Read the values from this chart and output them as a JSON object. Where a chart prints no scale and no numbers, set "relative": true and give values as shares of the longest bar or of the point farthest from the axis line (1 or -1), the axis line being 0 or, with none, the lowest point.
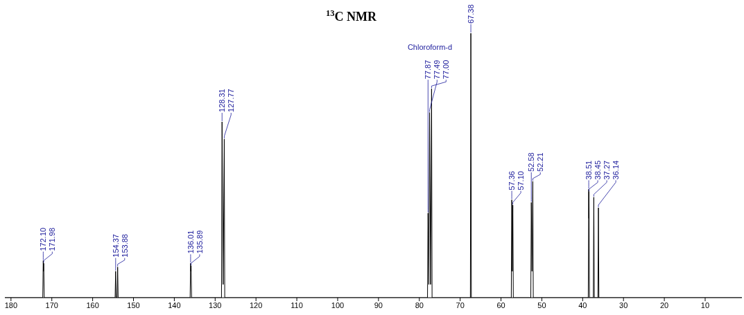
{
  "chart_data": {
    "type": "line",
    "title": "$^{13}$C NMR",
    "relative": true,
    "marker": "none",
    "line_style": "solid",
    "grid": false,
    "legend": false,
    "xlim": [
      181.5,
      1
    ],
    "xticks": [
      180,
      170,
      160,
      150,
      140,
      130,
      120,
      110,
      100,
      90,
      80,
      70,
      60,
      50,
      40,
      30,
      20,
      10
    ],
    "series": [
      {
        "color": "#000000",
        "x": [
          181.5,
          172.22,
          172.1,
          172.04,
          171.98,
          171.86,
          154.5,
          154.37,
          154.25,
          154.0,
          153.88,
          153.76,
          136.13,
          136.01,
          135.95,
          135.89,
          135.77,
          128.45,
          128.31,
          128.04,
          127.77,
          127.65,
          78.0,
          77.87,
          77.68,
          77.49,
          77.25,
          77.0,
          76.88,
          67.5,
          67.38,
          67.26,
          57.48,
          57.36,
          57.23,
          57.1,
          56.98,
          52.7,
          52.58,
          52.4,
          52.21,
          52.09,
          38.63,
          38.51,
          38.48,
          38.45,
          38.33,
          37.39,
          37.27,
          37.15,
          36.26,
          36.14,
          36.02,
          1
        ],
        "values": [
          0,
          0,
          0.14,
          0.1,
          0.13,
          0,
          0,
          0.1,
          0,
          0,
          0.116,
          0,
          0,
          0.13,
          0.1,
          0.12,
          0,
          0,
          0.665,
          0.05,
          0.6,
          0,
          0,
          0.32,
          0.05,
          0.7,
          0.05,
          0.79,
          0,
          0,
          1,
          0,
          0,
          0.37,
          0.1,
          0.35,
          0,
          0,
          0.36,
          0.1,
          0.44,
          0,
          0,
          0.41,
          0.3,
          0.4,
          0,
          0,
          0.38,
          0,
          0,
          0.34,
          0,
          0
        ]
      }
    ],
    "annotations": [
      "Chloroform-d",
      {
        "text": "172.10",
        "x": 172.1,
        "y": 0.14
      },
      {
        "text": "171.98",
        "x": 171.98,
        "y": 0.13
      },
      {
        "text": "154.37",
        "x": 154.37,
        "y": 0.1
      },
      {
        "text": "153.88",
        "x": 153.88,
        "y": 0.116
      },
      {
        "text": "136.01",
        "x": 136.01,
        "y": 0.13
      },
      {
        "text": "135.89",
        "x": 135.89,
        "y": 0.12
      },
      {
        "text": "128.31",
        "x": 128.31,
        "y": 0.665
      },
      {
        "text": "127.77",
        "x": 127.77,
        "y": 0.6
      },
      {
        "text": "77.87",
        "x": 77.87,
        "y": 0.32
      },
      {
        "text": "77.49",
        "x": 77.49,
        "y": 0.7
      },
      {
        "text": "77.00",
        "x": 77.0,
        "y": 0.79
      },
      {
        "text": "67.38",
        "x": 67.38,
        "y": 1
      },
      {
        "text": "57.36",
        "x": 57.36,
        "y": 0.37
      },
      {
        "text": "57.10",
        "x": 57.1,
        "y": 0.35
      },
      {
        "text": "52.58",
        "x": 52.58,
        "y": 0.36
      },
      {
        "text": "52.21",
        "x": 52.21,
        "y": 0.44
      },
      {
        "text": "38.51",
        "x": 38.51,
        "y": 0.41
      },
      {
        "text": "38.45",
        "x": 38.45,
        "y": 0.4
      },
      {
        "text": "37.27",
        "x": 37.27,
        "y": 0.38
      },
      {
        "text": "36.14",
        "x": 36.14,
        "y": 0.34
      }
    ]
  }
}
